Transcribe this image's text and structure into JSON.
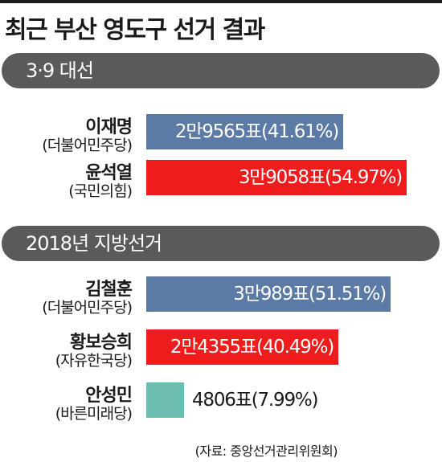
{
  "title": "최근 부산 영도구 선거 결과",
  "source": "(자료: 중앙선거관리위원회)",
  "chart_data": {
    "type": "bar",
    "title": "최근 부산 영도구 선거 결과",
    "groups": [
      {
        "label": "3·9 대선",
        "rows": [
          {
            "name": "이재명",
            "party": "(더불어민주당)",
            "votes": 29565,
            "percent": 41.61,
            "label": "2만9565표(41.61%)",
            "color": "#5b7aa6"
          },
          {
            "name": "윤석열",
            "party": "(국민의힘)",
            "votes": 39058,
            "percent": 54.97,
            "label": "3만9058표(54.97%)",
            "color": "#ee1c1c"
          }
        ]
      },
      {
        "label": "2018년 지방선거",
        "rows": [
          {
            "name": "김철훈",
            "party": "(더불어민주당)",
            "votes": 30989,
            "percent": 51.51,
            "label": "3만989표(51.51%)",
            "color": "#5b7aa6"
          },
          {
            "name": "황보승희",
            "party": "(자유한국당)",
            "votes": 24355,
            "percent": 40.49,
            "label": "2만4355표(40.49%)",
            "color": "#ee1c1c"
          },
          {
            "name": "안성민",
            "party": "(바른미래당)",
            "votes": 4806,
            "percent": 7.99,
            "label": "4806표(7.99%)",
            "color": "#6cbcb0"
          }
        ]
      }
    ]
  }
}
